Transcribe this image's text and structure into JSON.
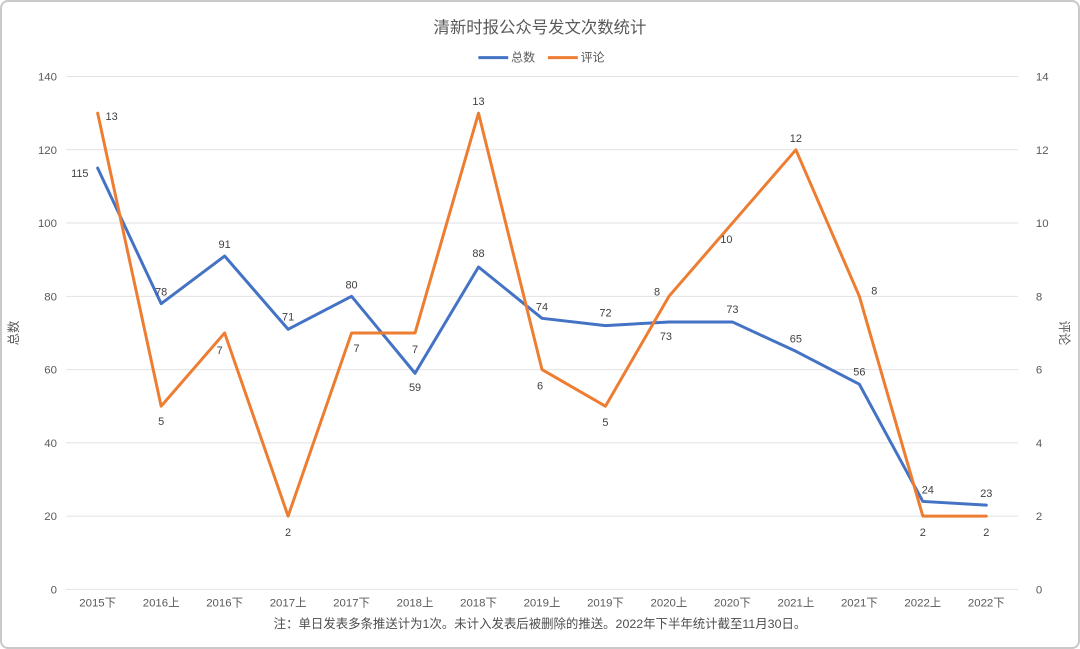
{
  "chart_data": {
    "type": "line",
    "title": "清新时报公众号发文次数统计",
    "note": "注：单日发表多条推送计为1次。未计入发表后被删除的推送。2022年下半年统计截至11月30日。",
    "categories": [
      "2015下",
      "2016上",
      "2016下",
      "2017上",
      "2017下",
      "2018上",
      "2018下",
      "2019上",
      "2019下",
      "2020上",
      "2020下",
      "2021上",
      "2021下",
      "2022上",
      "2022下"
    ],
    "series": [
      {
        "name": "总数",
        "axis": "left",
        "color": "#4472C4",
        "values": [
          115,
          78,
          91,
          71,
          80,
          59,
          88,
          74,
          72,
          73,
          73,
          65,
          56,
          24,
          23
        ],
        "label_offsets": [
          [
            -18,
            5
          ],
          [
            0,
            -12
          ],
          [
            0,
            -12
          ],
          [
            0,
            -13
          ],
          [
            0,
            -12
          ],
          [
            0,
            14
          ],
          [
            0,
            -14
          ],
          [
            0,
            -12
          ],
          [
            0,
            -13
          ],
          [
            -3,
            14
          ],
          [
            0,
            -13
          ],
          [
            0,
            -13
          ],
          [
            0,
            -13
          ],
          [
            5,
            -12
          ],
          [
            0,
            -12
          ]
        ]
      },
      {
        "name": "评论",
        "axis": "right",
        "color": "#ED7D31",
        "values": [
          13,
          5,
          7,
          2,
          7,
          7,
          13,
          6,
          5,
          8,
          10,
          12,
          8,
          2,
          2
        ],
        "label_offsets": [
          [
            14,
            3
          ],
          [
            0,
            15
          ],
          [
            -5,
            17
          ],
          [
            0,
            16
          ],
          [
            5,
            15
          ],
          [
            0,
            16
          ],
          [
            0,
            -12
          ],
          [
            -2,
            16
          ],
          [
            0,
            16
          ],
          [
            -12,
            -5
          ],
          [
            -6,
            16
          ],
          [
            0,
            -12
          ],
          [
            15,
            -6
          ],
          [
            0,
            16
          ],
          [
            0,
            16
          ]
        ]
      }
    ],
    "left_axis": {
      "title": "总数",
      "max": 140,
      "ticks": [
        0,
        20,
        40,
        60,
        80,
        100,
        120,
        140
      ]
    },
    "right_axis": {
      "title": "评论",
      "max": 14,
      "ticks": [
        0,
        2,
        4,
        6,
        8,
        10,
        12,
        14
      ]
    },
    "legend_position": "top",
    "grid": true,
    "colors": {
      "grid": "#e2e2e2",
      "text": "#595959",
      "data_label": "#404040"
    }
  }
}
